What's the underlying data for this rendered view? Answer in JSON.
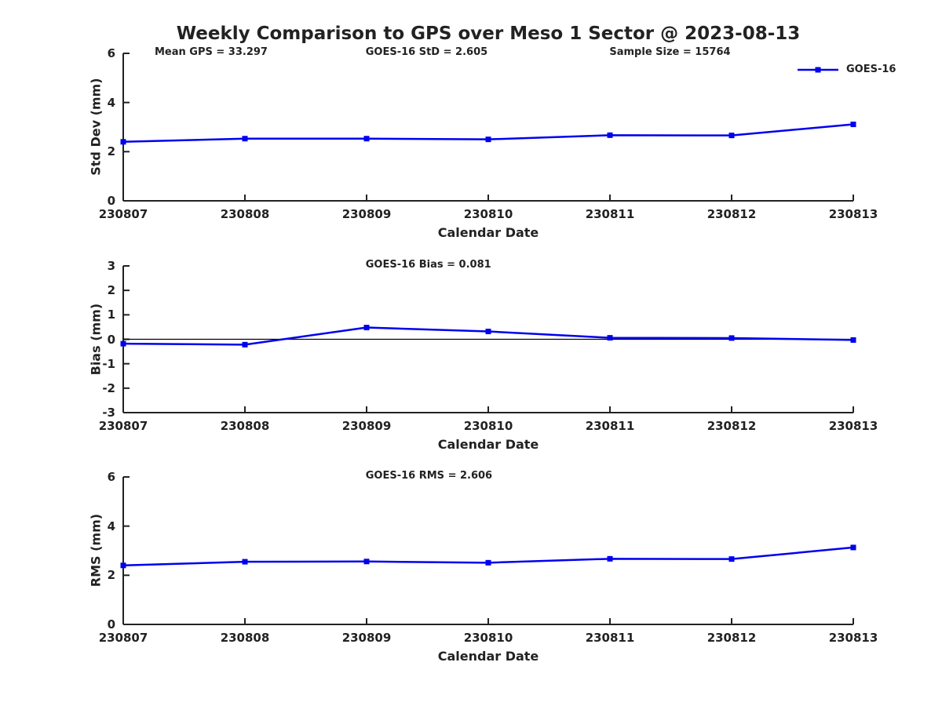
{
  "title": "Weekly Comparison to GPS over Meso 1 Sector @ 2023-08-13",
  "colors": {
    "series": "#0000EE",
    "text": "#222222",
    "axis": "#222222",
    "zero_line": "#000000",
    "background": "#ffffff"
  },
  "legend": {
    "label": "GOES-16",
    "position": "top-right",
    "marker": "filled-square"
  },
  "x_axis": {
    "label": "Calendar Date",
    "categories": [
      "230807",
      "230808",
      "230809",
      "230810",
      "230811",
      "230812",
      "230813"
    ]
  },
  "chart_data": [
    {
      "type": "line",
      "name": "std-dev-panel",
      "ylabel": "Std Dev (mm)",
      "xlabel": "Calendar Date",
      "ylim": [
        0,
        6
      ],
      "yticks": [
        0,
        2,
        4,
        6
      ],
      "grid": false,
      "zero_line": false,
      "show_legend": true,
      "series": [
        {
          "name": "GOES-16",
          "values": [
            2.4,
            2.53,
            2.53,
            2.5,
            2.67,
            2.66,
            3.11
          ]
        }
      ],
      "annotations": [
        {
          "text": "Mean GPS = 33.297",
          "xfrac": 0.043
        },
        {
          "text": "GOES-16 StD = 2.605",
          "xfrac": 0.332
        },
        {
          "text": "Sample Size = 15764",
          "xfrac": 0.666
        }
      ]
    },
    {
      "type": "line",
      "name": "bias-panel",
      "ylabel": "Bias (mm)",
      "xlabel": "Calendar Date",
      "ylim": [
        -3,
        3
      ],
      "yticks": [
        -3,
        -2,
        -1,
        0,
        1,
        2,
        3
      ],
      "grid": false,
      "zero_line": true,
      "show_legend": false,
      "series": [
        {
          "name": "GOES-16",
          "values": [
            -0.18,
            -0.22,
            0.48,
            0.32,
            0.06,
            0.05,
            -0.03
          ]
        }
      ],
      "annotations": [
        {
          "text": "GOES-16 Bias  = 0.081",
          "xfrac": 0.332
        }
      ]
    },
    {
      "type": "line",
      "name": "rms-panel",
      "ylabel": "RMS (mm)",
      "xlabel": "Calendar Date",
      "ylim": [
        0,
        6
      ],
      "yticks": [
        0,
        2,
        4,
        6
      ],
      "grid": false,
      "zero_line": false,
      "show_legend": false,
      "series": [
        {
          "name": "GOES-16",
          "values": [
            2.4,
            2.55,
            2.56,
            2.51,
            2.67,
            2.66,
            3.13
          ]
        }
      ],
      "annotations": [
        {
          "text": "GOES-16 RMS  = 2.606",
          "xfrac": 0.332
        }
      ]
    }
  ]
}
